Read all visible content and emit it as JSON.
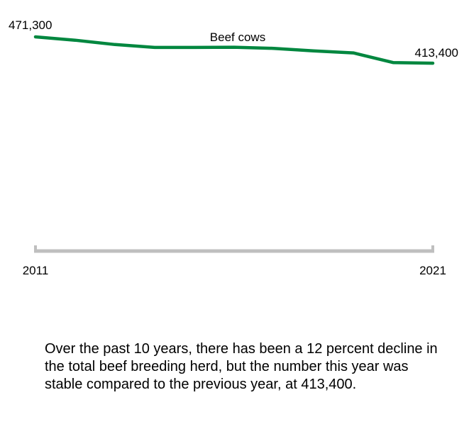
{
  "chart_data": {
    "type": "line",
    "x": [
      2011,
      2012,
      2013,
      2014,
      2015,
      2016,
      2017,
      2018,
      2019,
      2020,
      2021
    ],
    "series": [
      {
        "name": "Beef cows",
        "color": "#00873f",
        "values": [
          471300,
          464000,
          454500,
          448000,
          448000,
          448500,
          446000,
          440500,
          436000,
          414800,
          413400
        ]
      }
    ],
    "x_tick_labels": [
      "2011",
      "2021"
    ],
    "data_labels": [
      "471,300",
      "413,400"
    ],
    "ylim": [
      0,
      471300
    ],
    "axis_color": "#bfbfbf",
    "grid": false
  },
  "caption": "Over the past 10 years, there has been a 12 percent decline in the total beef breeding herd, but the number this year was stable compared to the previous year, at 413,400."
}
